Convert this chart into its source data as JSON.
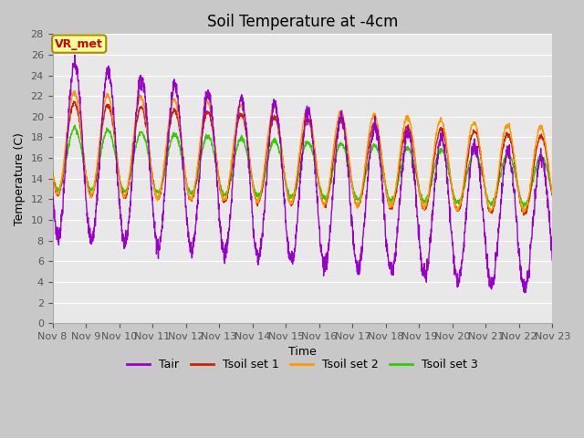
{
  "title": "Soil Temperature at -4cm",
  "xlabel": "Time",
  "ylabel": "Temperature (C)",
  "ylim": [
    0,
    28
  ],
  "colors": {
    "Tair": "#9900cc",
    "Tsoil_set1": "#cc2200",
    "Tsoil_set2": "#ff9900",
    "Tsoil_set3": "#33cc00"
  },
  "fig_bg_color": "#c8c8c8",
  "plot_bg_color": "#e8e8e8",
  "annotation_text": "VR_met",
  "annotation_color": "#cc0000",
  "annotation_bg": "#ffff99",
  "legend_labels": [
    "Tair",
    "Tsoil set 1",
    "Tsoil set 2",
    "Tsoil set 3"
  ],
  "xtick_labels": [
    "Nov 8",
    "Nov 9",
    "Nov 10",
    "Nov 11",
    "Nov 12",
    "Nov 13",
    "Nov 14",
    "Nov 15",
    "Nov 16",
    "Nov 17",
    "Nov 18",
    "Nov 19",
    "Nov 20",
    "Nov 21",
    "Nov 22",
    "Nov 23"
  ],
  "title_fontsize": 12,
  "axis_label_fontsize": 9,
  "tick_fontsize": 8
}
